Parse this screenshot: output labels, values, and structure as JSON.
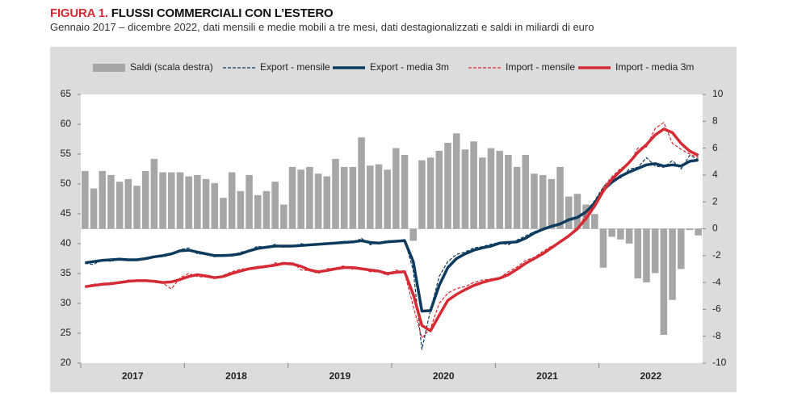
{
  "chart_data": {
    "type": "line",
    "title_prefix": "FIGURA 1.",
    "title": "FLUSSI COMMERCIALI CON L’ESTERO",
    "subtitle": "Gennaio 2017 – dicembre 2022, dati mensili e medie mobili a tre mesi, dati destagionalizzati e saldi in miliardi di euro",
    "year_labels": [
      "2017",
      "2018",
      "2019",
      "2020",
      "2021",
      "2022"
    ],
    "ylim": [
      20,
      65
    ],
    "yticks": [
      20,
      25,
      30,
      35,
      40,
      45,
      50,
      55,
      60,
      65
    ],
    "y2lim": [
      -10,
      10
    ],
    "y2ticks": [
      -10,
      -8,
      -6,
      -4,
      -2,
      0,
      2,
      4,
      6,
      8,
      10
    ],
    "series": [
      {
        "name": "Saldi (scala destra)",
        "type": "bar",
        "axis": "y2",
        "color": "#a6a6a6",
        "values": [
          4.3,
          3.0,
          4.3,
          4.0,
          3.5,
          3.7,
          3.2,
          4.3,
          5.2,
          4.2,
          4.2,
          4.2,
          3.9,
          4.0,
          3.7,
          3.4,
          2.3,
          4.2,
          2.8,
          4.0,
          2.5,
          2.8,
          3.5,
          1.8,
          4.6,
          4.4,
          4.6,
          4.1,
          3.9,
          5.2,
          4.6,
          4.6,
          6.8,
          4.7,
          4.8,
          4.4,
          6.0,
          5.5,
          -0.9,
          5.1,
          5.3,
          5.8,
          6.4,
          7.1,
          5.9,
          6.5,
          5.3,
          6.0,
          5.8,
          5.5,
          4.6,
          5.5,
          4.1,
          4.0,
          3.7,
          4.6,
          2.4,
          2.6,
          1.8,
          1.1,
          -2.9,
          -0.6,
          -0.8,
          -1.1,
          -3.7,
          -4.0,
          -3.3,
          -7.9,
          -5.3,
          -3.0,
          -0.1,
          -0.5
        ]
      },
      {
        "name": "Export - mensile",
        "type": "line",
        "dashed": true,
        "width": 1.2,
        "color": "#0d3b5e",
        "values": [
          36.7,
          36.5,
          37.4,
          37.0,
          37.6,
          37.2,
          37.3,
          37.4,
          37.9,
          37.8,
          38.2,
          39.0,
          39.3,
          38.3,
          38.3,
          37.8,
          38.2,
          37.9,
          38.6,
          38.8,
          39.6,
          39.3,
          39.9,
          39.4,
          39.5,
          40.0,
          39.7,
          40.0,
          40.0,
          40.2,
          40.4,
          40.1,
          40.9,
          39.8,
          40.2,
          40.5,
          40.4,
          40.7,
          35.5,
          22.3,
          28.9,
          34.5,
          37.0,
          38.2,
          38.6,
          39.3,
          39.5,
          39.9,
          40.2,
          39.8,
          40.6,
          41.3,
          42.0,
          42.5,
          43.0,
          43.4,
          44.1,
          44.3,
          45.4,
          47.2,
          49.5,
          50.8,
          51.0,
          52.5,
          52.8,
          54.4,
          53.0,
          52.8,
          53.9,
          52.5,
          54.8,
          54.1
        ]
      },
      {
        "name": "Export - media 3m",
        "type": "line",
        "dashed": false,
        "width": 3.5,
        "color": "#0d3b5e",
        "values": [
          36.8,
          37.0,
          37.2,
          37.3,
          37.4,
          37.3,
          37.3,
          37.5,
          37.8,
          38.0,
          38.3,
          38.8,
          38.9,
          38.6,
          38.3,
          38.0,
          38.0,
          38.1,
          38.3,
          38.8,
          39.2,
          39.4,
          39.6,
          39.6,
          39.6,
          39.7,
          39.8,
          39.9,
          40.0,
          40.1,
          40.2,
          40.3,
          40.5,
          40.2,
          40.1,
          40.3,
          40.4,
          40.5,
          37.0,
          28.7,
          28.8,
          33.0,
          36.0,
          37.5,
          38.3,
          38.9,
          39.3,
          39.6,
          40.1,
          40.2,
          40.3,
          40.9,
          41.8,
          42.4,
          42.9,
          43.3,
          44.0,
          44.4,
          45.3,
          46.8,
          49.0,
          50.3,
          51.3,
          52.0,
          52.6,
          53.2,
          53.4,
          53.0,
          53.2,
          53.0,
          53.8,
          54.0
        ]
      },
      {
        "name": "Import - mensile",
        "type": "line",
        "dashed": true,
        "width": 1.2,
        "color": "#d52b35",
        "values": [
          32.7,
          33.3,
          33.0,
          33.5,
          33.4,
          33.9,
          33.8,
          34.0,
          33.5,
          33.4,
          32.4,
          34.3,
          35.0,
          34.5,
          34.4,
          34.2,
          34.7,
          35.3,
          35.7,
          35.9,
          36.2,
          36.0,
          36.8,
          36.5,
          36.9,
          35.6,
          35.5,
          35.0,
          35.8,
          35.9,
          36.3,
          35.7,
          35.9,
          35.3,
          35.3,
          34.7,
          35.6,
          35.1,
          29.5,
          24.2,
          25.8,
          30.0,
          31.7,
          32.5,
          32.8,
          33.5,
          33.9,
          34.1,
          34.3,
          35.3,
          36.1,
          37.2,
          37.7,
          38.7,
          39.6,
          40.2,
          41.3,
          42.2,
          45.0,
          46.4,
          49.5,
          51.2,
          52.6,
          53.4,
          56.0,
          56.2,
          59.3,
          60.3,
          56.8,
          55.8,
          55.0,
          54.4
        ]
      },
      {
        "name": "Import - media 3m",
        "type": "line",
        "dashed": false,
        "width": 3.5,
        "color": "#d52b35",
        "values": [
          32.8,
          33.0,
          33.2,
          33.3,
          33.5,
          33.7,
          33.8,
          33.8,
          33.7,
          33.5,
          33.6,
          34.0,
          34.5,
          34.8,
          34.6,
          34.3,
          34.5,
          35.0,
          35.4,
          35.8,
          36.0,
          36.2,
          36.4,
          36.7,
          36.6,
          36.2,
          35.6,
          35.3,
          35.5,
          35.8,
          36.0,
          36.0,
          35.8,
          35.6,
          35.4,
          35.0,
          35.2,
          35.3,
          31.5,
          26.3,
          25.4,
          28.0,
          30.5,
          31.5,
          32.3,
          33.0,
          33.5,
          33.9,
          34.2,
          34.8,
          35.7,
          36.7,
          37.5,
          38.3,
          39.3,
          40.3,
          41.3,
          42.5,
          44.2,
          46.3,
          48.8,
          50.8,
          52.2,
          53.6,
          55.3,
          56.6,
          58.2,
          59.2,
          58.6,
          56.8,
          55.5,
          54.8
        ]
      }
    ]
  }
}
